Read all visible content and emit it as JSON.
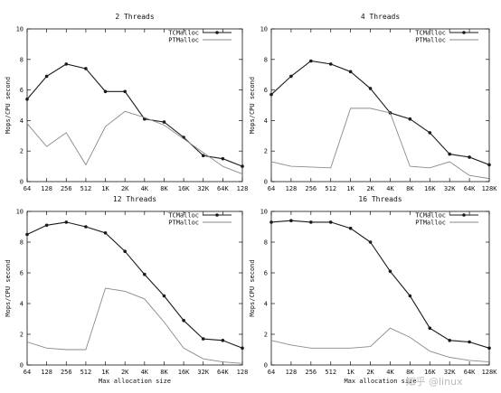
{
  "chart_data": [
    {
      "type": "line",
      "title": "2 Threads",
      "xlabel": "",
      "ylabel": "Mops/CPU second",
      "categories": [
        "64",
        "128",
        "256",
        "512",
        "1K",
        "2K",
        "4K",
        "8K",
        "16K",
        "32K",
        "64K",
        "128"
      ],
      "ylim": [
        0,
        10
      ],
      "yticks": [
        0,
        2,
        4,
        6,
        8,
        10
      ],
      "legend_position": "top-right",
      "series": [
        {
          "name": "TCMalloc",
          "values": [
            5.4,
            6.9,
            7.7,
            7.4,
            5.9,
            5.9,
            4.1,
            3.9,
            2.9,
            1.7,
            1.5,
            1.0
          ]
        },
        {
          "name": "PTMalloc",
          "values": [
            3.8,
            2.3,
            3.2,
            1.1,
            3.6,
            4.6,
            4.2,
            3.7,
            2.8,
            1.9,
            1.0,
            0.5
          ]
        }
      ]
    },
    {
      "type": "line",
      "title": "4 Threads",
      "xlabel": "",
      "ylabel": "Mops/CPU second",
      "categories": [
        "64",
        "128",
        "256",
        "512",
        "1K",
        "2K",
        "4K",
        "8K",
        "16K",
        "32K",
        "64K",
        "128K"
      ],
      "ylim": [
        0,
        10
      ],
      "yticks": [
        0,
        2,
        4,
        6,
        8,
        10
      ],
      "legend_position": "top-right",
      "series": [
        {
          "name": "TCMalloc",
          "values": [
            5.7,
            6.9,
            7.9,
            7.7,
            7.2,
            6.1,
            4.5,
            4.1,
            3.2,
            1.8,
            1.6,
            1.1
          ]
        },
        {
          "name": "PTMalloc",
          "values": [
            1.3,
            1.0,
            0.95,
            0.9,
            4.8,
            4.8,
            4.5,
            1.0,
            0.9,
            1.3,
            0.4,
            0.2
          ]
        }
      ]
    },
    {
      "type": "line",
      "title": "12 Threads",
      "xlabel": "Max allocation size",
      "ylabel": "Mops/CPU second",
      "categories": [
        "64",
        "128",
        "256",
        "512",
        "1K",
        "2K",
        "4K",
        "8K",
        "16K",
        "32K",
        "64K",
        "128"
      ],
      "ylim": [
        0,
        10
      ],
      "yticks": [
        0,
        2,
        4,
        6,
        8,
        10
      ],
      "legend_position": "top-right",
      "series": [
        {
          "name": "TCMalloc",
          "values": [
            8.5,
            9.1,
            9.3,
            9.0,
            8.6,
            7.4,
            5.9,
            4.5,
            2.9,
            1.7,
            1.6,
            1.1
          ]
        },
        {
          "name": "PTMalloc",
          "values": [
            1.5,
            1.1,
            1.0,
            1.0,
            5.0,
            4.8,
            4.3,
            2.8,
            1.1,
            0.4,
            0.2,
            0.1
          ]
        }
      ]
    },
    {
      "type": "line",
      "title": "16 Threads",
      "xlabel": "Max allocation size",
      "ylabel": "Mops/CPU second",
      "categories": [
        "64",
        "128",
        "256",
        "512",
        "1K",
        "2K",
        "4K",
        "8K",
        "16K",
        "32K",
        "64K",
        "128K"
      ],
      "ylim": [
        0,
        10
      ],
      "yticks": [
        0,
        2,
        4,
        6,
        8,
        10
      ],
      "legend_position": "top-right",
      "series": [
        {
          "name": "TCMalloc",
          "values": [
            9.3,
            9.4,
            9.3,
            9.3,
            8.9,
            8.0,
            6.1,
            4.5,
            2.4,
            1.6,
            1.5,
            1.1
          ]
        },
        {
          "name": "PTMalloc",
          "values": [
            1.6,
            1.3,
            1.1,
            1.1,
            1.1,
            1.2,
            2.4,
            1.8,
            0.9,
            0.5,
            0.3,
            0.2
          ]
        }
      ]
    }
  ],
  "colors": {
    "tcmalloc": "#1a1a1a",
    "ptmalloc": "#8a8a8a",
    "axis": "#111111"
  },
  "watermark": "知乎 @linux"
}
